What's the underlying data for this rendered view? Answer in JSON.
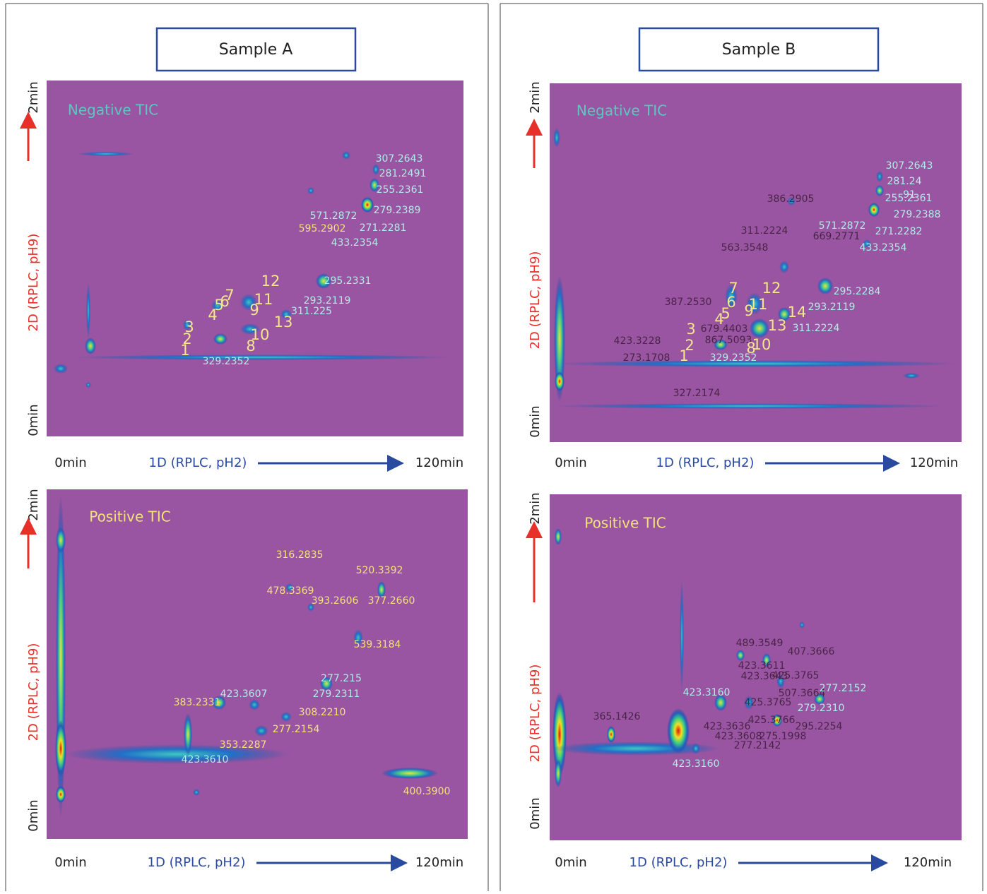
{
  "panels": [
    {
      "title": "Sample A",
      "plots": [
        {
          "label": "Negative TIC",
          "y_top": "2min",
          "y_axis": "2D (RPLC, pH9)",
          "y_bottom": "0min",
          "x_left": "0min",
          "x_axis": "1D (RPLC, pH2)",
          "x_right": "120min",
          "peaks": [
            "307.2643",
            "281.2491",
            "255.2361",
            "279.2389",
            "571.2872",
            "595.2902",
            "271.2281",
            "433.2354",
            "295.2331",
            "293.2119",
            "311.225",
            "329.2352"
          ],
          "numbers": [
            "12",
            "7",
            "6",
            "5",
            "4",
            "11",
            "9",
            "13",
            "10",
            "8",
            "3",
            "2",
            "1"
          ]
        },
        {
          "label": "Positive TIC",
          "y_top": "2min",
          "y_axis": "2D (RPLC, pH9)",
          "y_bottom": "0min",
          "x_left": "0min",
          "x_axis": "1D (RPLC, pH2)",
          "x_right": "120min",
          "peaks": [
            "316.2835",
            "520.3392",
            "478.3369",
            "393.2606",
            "377.2660",
            "539.3184",
            "277.215",
            "279.2311",
            "423.3607",
            "383.2331",
            "308.2210",
            "277.2154",
            "353.2287",
            "423.3610",
            "400.3900"
          ],
          "numbers": []
        }
      ]
    },
    {
      "title": "Sample B",
      "plots": [
        {
          "label": "Negative TIC",
          "y_top": "2min",
          "y_axis": "2D (RPLC, pH9)",
          "y_bottom": "0min",
          "x_left": "0min",
          "x_axis": "1D (RPLC, pH2)",
          "x_right": "120min",
          "peaks": [
            "307.2643",
            "281.24",
            "91",
            "255.2361",
            "279.2388",
            "571.2872",
            "271.2282",
            "433.2354",
            "386.2905",
            "311.2224",
            "669.2771",
            "563.3548",
            "387.2530",
            "423.3228",
            "273.1708",
            "327.2174",
            "679.4403",
            "867.5093",
            "295.2284",
            "293.2119",
            "311.2224",
            "329.2352"
          ],
          "numbers": [
            "7",
            "12",
            "6",
            "11",
            "5",
            "9",
            "4",
            "14",
            "13",
            "3",
            "2",
            "1",
            "8",
            "10"
          ]
        },
        {
          "label": "Positive TIC",
          "y_top": "2min",
          "y_axis": "2D (RPLC, pH9)",
          "y_bottom": "0min",
          "x_left": "0min",
          "x_axis": "1D (RPLC, pH2)",
          "x_right": "120min",
          "peaks": [
            "489.3549",
            "407.3666",
            "423.3611",
            "423.3643",
            "425.3765",
            "507.3664",
            "365.1426",
            "425.3765",
            "425.3766",
            "423.3636",
            "423.3608",
            "275.1998",
            "277.2142",
            "295.2254",
            "423.3160",
            "423.3160",
            "277.2152",
            "279.2310"
          ],
          "numbers": []
        }
      ]
    }
  ]
}
